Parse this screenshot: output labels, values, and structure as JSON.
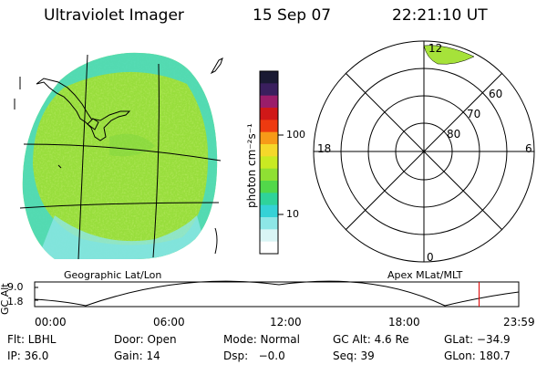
{
  "header": {
    "instrument": "Ultraviolet Imager",
    "date": "15 Sep 07",
    "time": "22:21:10 UT"
  },
  "geo_panel": {
    "label": "Geographic Lat/Lon"
  },
  "polar_panel": {
    "label": "Apex MLat/MLT",
    "mlt_labels": {
      "top": "12",
      "left": "18",
      "right": "6",
      "bottom": "0"
    },
    "lat_labels": [
      "60",
      "70",
      "80"
    ]
  },
  "colorbar": {
    "unit_label": "photon cm⁻²s⁻¹",
    "ticks": [
      "100",
      "10"
    ],
    "colors": [
      "#1a1a33",
      "#3a1f5e",
      "#9a1d6a",
      "#d01818",
      "#ee3a10",
      "#f79a18",
      "#f5d82a",
      "#c9ea22",
      "#8fe033",
      "#52d84a",
      "#2fd39a",
      "#35d2d6",
      "#8de6e6",
      "#d9f5f5",
      "#ffffff"
    ]
  },
  "timeline": {
    "axis_label": "GC Alt",
    "y_ticks": [
      "9.0",
      "1.8"
    ],
    "x_ticks": [
      "00:00",
      "06:00",
      "12:00",
      "18:00",
      "23:59"
    ],
    "marker_fraction": 0.918,
    "marker_color": "#e00000"
  },
  "status": {
    "row1": [
      {
        "key": "flt",
        "text": "Flt: LBHL"
      },
      {
        "key": "door",
        "text": "Door: Open"
      },
      {
        "key": "mode",
        "text": "Mode: Normal"
      },
      {
        "key": "gcalt",
        "text": "GC Alt: 4.6 Re"
      },
      {
        "key": "glat",
        "text": "GLat: −34.9"
      }
    ],
    "row2": [
      {
        "key": "ip",
        "text": "IP: 36.0"
      },
      {
        "key": "gain",
        "text": "Gain: 14"
      },
      {
        "key": "dsp",
        "text": "Dsp:   −0.0"
      },
      {
        "key": "seq",
        "text": "Seq: 39"
      },
      {
        "key": "glon",
        "text": "GLon: 180.7"
      }
    ]
  },
  "colors": {
    "aurora_main": "#9fe03a",
    "aurora_cyan": "#46d9c6",
    "polar_blob": "#a6e23a"
  }
}
